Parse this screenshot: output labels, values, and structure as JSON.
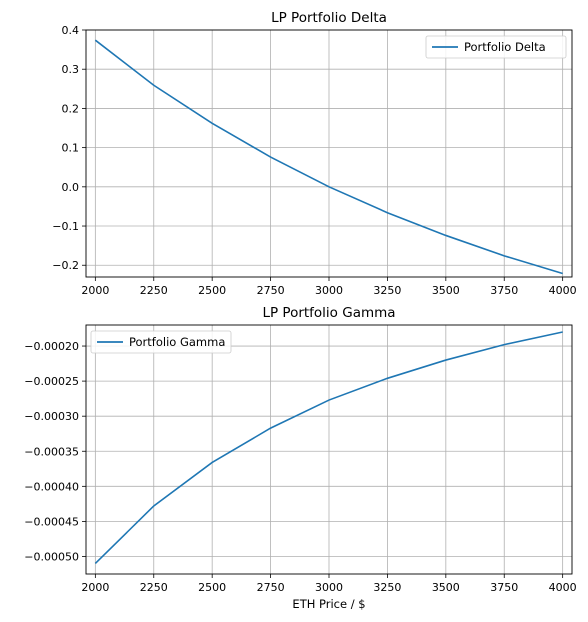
{
  "chart_data": [
    {
      "type": "line",
      "title": "LP Portfolio Delta",
      "xlabel": "",
      "ylabel": "",
      "xlim": [
        1960,
        4040
      ],
      "ylim": [
        -0.23,
        0.4
      ],
      "xticks": [
        2000,
        2250,
        2500,
        2750,
        3000,
        3250,
        3500,
        3750,
        4000
      ],
      "xtick_labels": [
        "2000",
        "2250",
        "2500",
        "2750",
        "3000",
        "3250",
        "3500",
        "3750",
        "4000"
      ],
      "yticks": [
        0.4,
        0.3,
        0.2,
        0.1,
        0.0,
        -0.1,
        -0.2
      ],
      "ytick_labels": [
        "0.4",
        "0.3",
        "0.2",
        "0.1",
        "0.0",
        "−0.1",
        "−0.2"
      ],
      "grid": true,
      "legend_position": "top-right",
      "series": [
        {
          "name": "Portfolio Delta",
          "color": "#1f77b4",
          "x": [
            2000,
            2250,
            2500,
            2750,
            3000,
            3250,
            3500,
            3750,
            4000
          ],
          "y": [
            0.374,
            0.259,
            0.162,
            0.076,
            0.0,
            -0.066,
            -0.124,
            -0.176,
            -0.221
          ]
        }
      ]
    },
    {
      "type": "line",
      "title": "LP Portfolio Gamma",
      "xlabel": "ETH Price / $",
      "ylabel": "",
      "xlim": [
        1960,
        4040
      ],
      "ylim": [
        -0.000525,
        -0.00017
      ],
      "xticks": [
        2000,
        2250,
        2500,
        2750,
        3000,
        3250,
        3500,
        3750,
        4000
      ],
      "xtick_labels": [
        "2000",
        "2250",
        "2500",
        "2750",
        "3000",
        "3250",
        "3500",
        "3750",
        "4000"
      ],
      "yticks": [
        -0.0002,
        -0.00025,
        -0.0003,
        -0.00035,
        -0.0004,
        -0.00045,
        -0.0005
      ],
      "ytick_labels": [
        "−0.00020",
        "−0.00025",
        "−0.00030",
        "−0.00035",
        "−0.00040",
        "−0.00045",
        "−0.00050"
      ],
      "grid": true,
      "legend_position": "top-left",
      "series": [
        {
          "name": "Portfolio Gamma",
          "color": "#1f77b4",
          "x": [
            2000,
            2250,
            2500,
            2750,
            3000,
            3250,
            3500,
            3750,
            4000
          ],
          "y": [
            -0.00051,
            -0.000428,
            -0.000366,
            -0.000317,
            -0.000277,
            -0.000246,
            -0.00022,
            -0.000198,
            -0.00018
          ]
        }
      ]
    }
  ]
}
